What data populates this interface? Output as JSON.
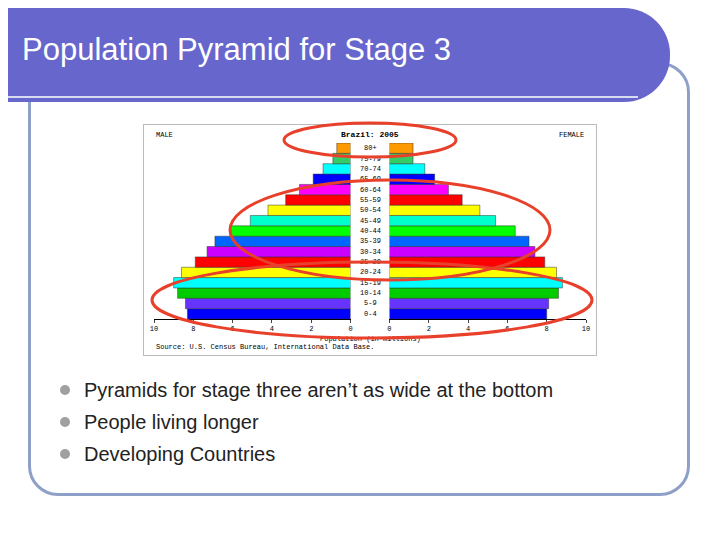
{
  "slide": {
    "title": "Population Pyramid for Stage 3",
    "bullets": [
      "Pyramids for stage three aren’t as wide at the bottom",
      "People living longer",
      "Developing Countries"
    ]
  },
  "chart_data": {
    "type": "bar",
    "orientation": "horizontal",
    "title": "Brazil: 2005",
    "x_label": "Population (in millions)",
    "source": "Source: U.S. Census Bureau, International Data Base.",
    "categories": [
      "0-4",
      "5-9",
      "10-14",
      "15-19",
      "20-24",
      "25-29",
      "30-34",
      "35-39",
      "40-44",
      "45-49",
      "50-54",
      "55-59",
      "60-64",
      "65-69",
      "70-74",
      "75-79",
      "80+"
    ],
    "series": [
      {
        "name": "MALE",
        "values": [
          8.3,
          8.4,
          8.8,
          9.0,
          8.6,
          7.9,
          7.3,
          6.9,
          6.1,
          5.1,
          4.2,
          3.3,
          2.6,
          1.9,
          1.4,
          0.9,
          0.7
        ]
      },
      {
        "name": "FEMALE",
        "values": [
          8.0,
          8.1,
          8.6,
          8.8,
          8.5,
          7.9,
          7.4,
          7.1,
          6.4,
          5.4,
          4.6,
          3.7,
          3.0,
          2.3,
          1.8,
          1.2,
          1.2
        ]
      }
    ],
    "colors": [
      "#0000ff",
      "#6633ff",
      "#00cc00",
      "#00ffff",
      "#ffff00",
      "#ff0000",
      "#cc00ff",
      "#0066ff",
      "#00ff00",
      "#00ffcc",
      "#ffff00",
      "#ff0000",
      "#ff00ff",
      "#0000ff",
      "#00ffff",
      "#33cc66",
      "#ff9900"
    ],
    "xlim": [
      0,
      10
    ],
    "xticks": [
      0,
      2,
      4,
      6,
      8,
      10
    ],
    "grid": false
  }
}
